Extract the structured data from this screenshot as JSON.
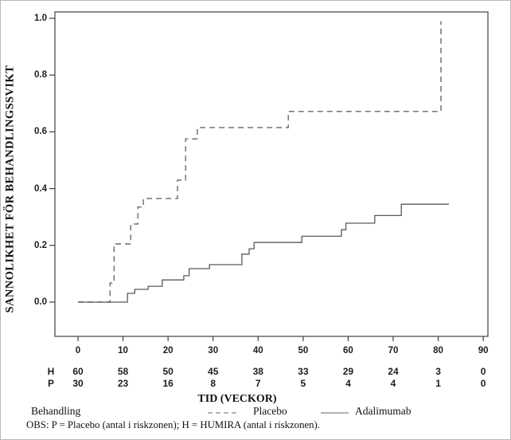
{
  "figure": {
    "y_axis": {
      "title": "SANNOLIKHET FÖR BEHANDLINGSSVIKT",
      "ticks": [
        "1.0",
        "0.8",
        "0.6",
        "0.4",
        "0.2",
        "0.0"
      ]
    },
    "x_axis": {
      "title": "TID (VECKOR)",
      "ticks": [
        "0",
        "10",
        "20",
        "30",
        "40",
        "50",
        "60",
        "70",
        "80",
        "90"
      ]
    },
    "risk_table": {
      "rows": [
        {
          "label": "H",
          "values": [
            "60",
            "58",
            "50",
            "45",
            "38",
            "33",
            "29",
            "24",
            "3",
            "0"
          ]
        },
        {
          "label": "P",
          "values": [
            "30",
            "23",
            "16",
            "8",
            "7",
            "5",
            "4",
            "4",
            "1",
            "0"
          ]
        }
      ]
    },
    "legend": {
      "title": "Behandling",
      "items": [
        {
          "label": "Placebo",
          "line_style": "dashed"
        },
        {
          "label": "Adalimumab",
          "line_style": "solid"
        }
      ]
    },
    "footnote": "OBS: P = Placebo (antal i riskzonen); H = HUMIRA (antal i riskzonen)."
  },
  "chart_data": {
    "type": "line",
    "subtype": "kaplan-meier-step",
    "title": "",
    "xlabel": "TID (VECKOR)",
    "ylabel": "SANNOLIKHET FÖR BEHANDLINGSSVIKT",
    "xlim": [
      -5,
      95
    ],
    "ylim": [
      0,
      1.0
    ],
    "x_ticks": [
      0,
      10,
      20,
      30,
      40,
      50,
      60,
      70,
      80,
      90
    ],
    "y_ticks": [
      0.0,
      0.2,
      0.4,
      0.6,
      0.8,
      1.0
    ],
    "grid": false,
    "legend_position": "bottom",
    "series": [
      {
        "name": "Placebo",
        "line": "dashed",
        "color": "#686868",
        "steps": [
          [
            0,
            0.0
          ],
          [
            7.1,
            0.067
          ],
          [
            8.0,
            0.205
          ],
          [
            11.7,
            0.275
          ],
          [
            13.3,
            0.335
          ],
          [
            14.5,
            0.365
          ],
          [
            22.1,
            0.43
          ],
          [
            23.9,
            0.575
          ],
          [
            26.5,
            0.615
          ],
          [
            46.7,
            0.672
          ],
          [
            80.6,
            0.99
          ]
        ],
        "end_week": null
      },
      {
        "name": "Adalimumab",
        "line": "solid",
        "color": "#5a5a5a",
        "steps": [
          [
            0,
            0.0
          ],
          [
            11.0,
            0.031
          ],
          [
            12.6,
            0.045
          ],
          [
            15.6,
            0.056
          ],
          [
            18.7,
            0.078
          ],
          [
            23.5,
            0.093
          ],
          [
            24.7,
            0.118
          ],
          [
            29.2,
            0.132
          ],
          [
            36.4,
            0.169
          ],
          [
            38.0,
            0.188
          ],
          [
            39.1,
            0.21
          ],
          [
            49.7,
            0.232
          ],
          [
            58.5,
            0.255
          ],
          [
            59.5,
            0.278
          ],
          [
            65.9,
            0.305
          ],
          [
            71.8,
            0.345
          ]
        ],
        "end_week": 82.4
      }
    ]
  },
  "colors": {
    "axis": "#3f3f3f",
    "text": "#1d1d1d",
    "legend_sample": "#9a9a9a",
    "background": "#ffffff"
  }
}
